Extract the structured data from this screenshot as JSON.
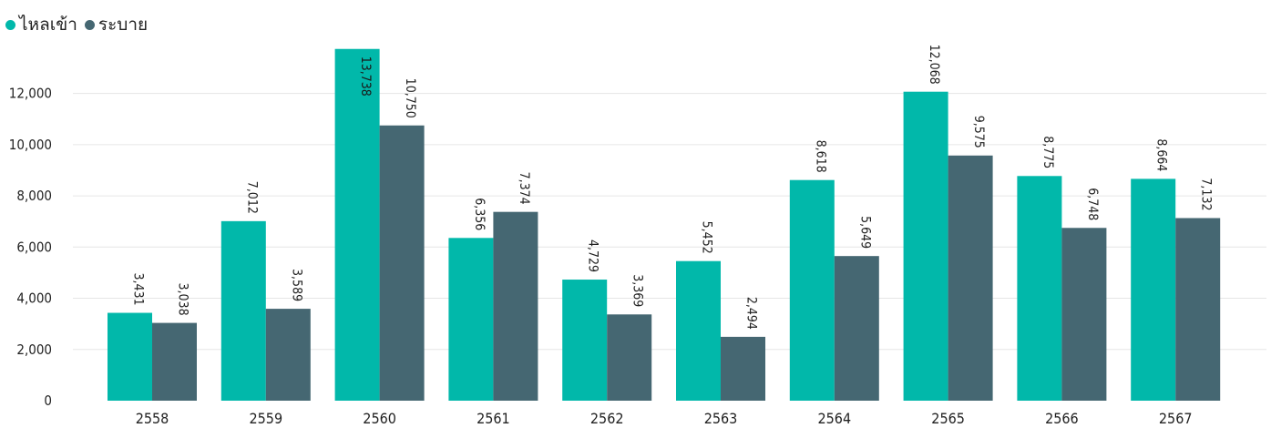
{
  "chart_data": {
    "type": "bar",
    "categories": [
      "2558",
      "2559",
      "2560",
      "2561",
      "2562",
      "2563",
      "2564",
      "2565",
      "2566",
      "2567"
    ],
    "series": [
      {
        "name": "ไหลเข้า",
        "color": "#01B8AA",
        "values": [
          3431,
          7012,
          13738,
          6356,
          4729,
          5452,
          8618,
          12068,
          8775,
          8664
        ],
        "labels": [
          "3,431",
          "7,012",
          "13,738",
          "6,356",
          "4,729",
          "5,452",
          "8,618",
          "12,068",
          "8,775",
          "8,664"
        ]
      },
      {
        "name": "ระบาย",
        "color": "#456772",
        "values": [
          3038,
          3589,
          10750,
          7374,
          3369,
          2494,
          5649,
          9575,
          6748,
          7132
        ],
        "labels": [
          "3,038",
          "3,589",
          "10,750",
          "7,374",
          "3,369",
          "2,494",
          "5,649",
          "9,575",
          "6,748",
          "7,132"
        ]
      }
    ],
    "yticks": [
      0,
      2000,
      4000,
      6000,
      8000,
      10000,
      12000
    ],
    "ytick_labels": [
      "0",
      "2,000",
      "4,000",
      "6,000",
      "8,000",
      "10,000",
      "12,000"
    ],
    "ylim": [
      0,
      13800
    ],
    "grid": true,
    "legend": "top-left"
  }
}
